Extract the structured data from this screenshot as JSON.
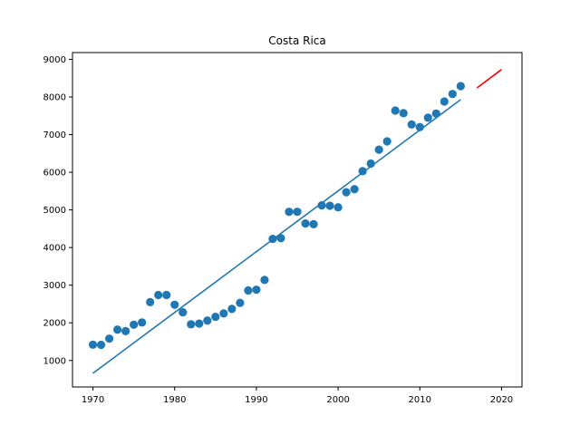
{
  "chart_data": {
    "type": "scatter",
    "title": "Costa Rica",
    "xlabel": "",
    "ylabel": "",
    "xlim": [
      1967.5,
      2022.5
    ],
    "ylim": [
      296,
      9180
    ],
    "x_ticks": [
      1970,
      1980,
      1990,
      2000,
      2010,
      2020
    ],
    "y_ticks": [
      1000,
      2000,
      3000,
      4000,
      5000,
      6000,
      7000,
      8000,
      9000
    ],
    "grid": false,
    "colors": {
      "scatter": "#1f77b4",
      "fit_line": "#1f77b4",
      "projection": "#ff0000"
    },
    "series": [
      {
        "type": "scatter",
        "x": [
          1970,
          1971,
          1972,
          1973,
          1974,
          1975,
          1976,
          1977,
          1978,
          1979,
          1980,
          1981,
          1982,
          1983,
          1984,
          1985,
          1986,
          1987,
          1988,
          1989,
          1990,
          1991,
          1992,
          1993,
          1994,
          1995,
          1996,
          1997,
          1998,
          1999,
          2000,
          2001,
          2002,
          2003,
          2004,
          2005,
          2006,
          2007,
          2008,
          2009,
          2010,
          2011,
          2012,
          2013,
          2014,
          2015
        ],
        "y": [
          1420,
          1415,
          1580,
          1820,
          1780,
          1950,
          2010,
          2550,
          2740,
          2740,
          2480,
          2280,
          1960,
          1980,
          2060,
          2160,
          2250,
          2370,
          2530,
          2860,
          2880,
          3140,
          4230,
          4250,
          4950,
          4950,
          4640,
          4620,
          5120,
          5110,
          5070,
          5470,
          5550,
          6030,
          6230,
          6600,
          6820,
          7640,
          7570,
          7270,
          7200,
          7450,
          7560,
          7880,
          8080,
          8290
        ]
      },
      {
        "type": "line",
        "x": [
          1970,
          2015
        ],
        "y": [
          660,
          7930
        ]
      },
      {
        "type": "line",
        "x": [
          2017,
          2020
        ],
        "y": [
          8240,
          8730
        ]
      }
    ]
  }
}
